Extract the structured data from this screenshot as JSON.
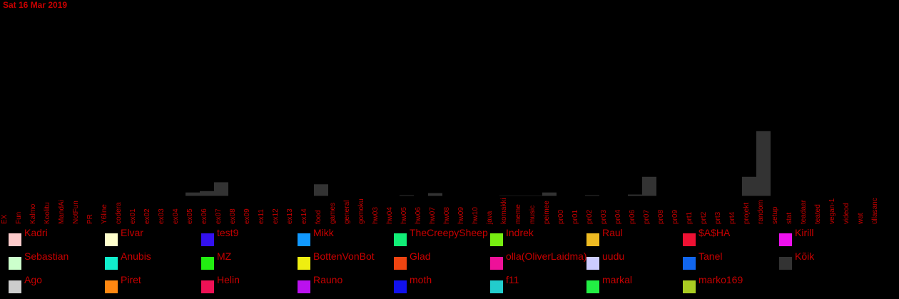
{
  "title": "Sat 16 Mar 2019",
  "colors": {
    "text": "#c80000",
    "background": "#000000",
    "bar": "#333333"
  },
  "chart_data": {
    "type": "bar",
    "categories": [
      "EX",
      "Fun",
      "Kalmo",
      "Koolitu",
      "MandAi",
      "NotFun",
      "PR",
      "Y6line",
      "codera",
      "ex01",
      "ex02",
      "ex03",
      "ex04",
      "ex05",
      "ex06",
      "ex07",
      "ex08",
      "ex09",
      "ex11",
      "ex12",
      "ex13",
      "ex14",
      "food",
      "games",
      "general",
      "gomoku",
      "hw03",
      "hw04",
      "hw05",
      "hw06",
      "hw07",
      "hw08",
      "hw09",
      "hw10",
      "java",
      "komakki",
      "meme",
      "music",
      "peimee",
      "pr00",
      "pr01",
      "pr02",
      "pr03",
      "pr04",
      "pr06",
      "pr07",
      "pr08",
      "pr09",
      "prt1",
      "prt2",
      "prt3",
      "prt4",
      "projekt",
      "random",
      "setup",
      "stat",
      "teadaar",
      "teated",
      "vegan-1",
      "videod",
      "wat",
      "üllasanc"
    ],
    "values": [
      0,
      0,
      0,
      0,
      0,
      0,
      0,
      0,
      0,
      0,
      0,
      0,
      0,
      5,
      7,
      20,
      0,
      0,
      0,
      0,
      0,
      0,
      17,
      0,
      0,
      0,
      0,
      0,
      1,
      0,
      4,
      0,
      0,
      0,
      0,
      0.5,
      0.5,
      0.5,
      5,
      0,
      0,
      1,
      0,
      0,
      2,
      28,
      0,
      0,
      0,
      0,
      0,
      0,
      28,
      95,
      0,
      0,
      0,
      0,
      0,
      0,
      0,
      0
    ],
    "ylim": [
      0,
      100
    ],
    "grid": false,
    "legend_position": "bottom",
    "legend": [
      {
        "name": "Kadri",
        "color": "#ffcccc"
      },
      {
        "name": "Elvar",
        "color": "#ffffcc"
      },
      {
        "name": "test9",
        "color": "#3311ee"
      },
      {
        "name": "Mikk",
        "color": "#1199ff"
      },
      {
        "name": "TheCreepySheep",
        "color": "#11ee77"
      },
      {
        "name": "Indrek",
        "color": "#77ee11"
      },
      {
        "name": "Raul",
        "color": "#eebb22"
      },
      {
        "name": "$A$HA",
        "color": "#ee1133"
      },
      {
        "name": "Kirill",
        "color": "#ee11ee"
      },
      {
        "name": "Sebastian",
        "color": "#ccffcc"
      },
      {
        "name": "Anubis",
        "color": "#11eecc"
      },
      {
        "name": "MZ",
        "color": "#22ee11"
      },
      {
        "name": "BottenVonBot",
        "color": "#eeee11"
      },
      {
        "name": "Glad",
        "color": "#ee4411"
      },
      {
        "name": "olla(OliverLaidma)",
        "color": "#ee1199"
      },
      {
        "name": "uudu",
        "color": "#ccccff"
      },
      {
        "name": "Tanel",
        "color": "#1166ee"
      },
      {
        "name": "Kõik",
        "color": "#333333"
      },
      {
        "name": "Ago",
        "color": "#cccccc"
      },
      {
        "name": "Piret",
        "color": "#ff8811"
      },
      {
        "name": "Helin",
        "color": "#ee1155"
      },
      {
        "name": "Rauno",
        "color": "#bb11ee"
      },
      {
        "name": "moth",
        "color": "#1111ee"
      },
      {
        "name": "f11",
        "color": "#22cccc"
      },
      {
        "name": "markal",
        "color": "#22ee44"
      },
      {
        "name": "marko169",
        "color": "#aacc22"
      }
    ]
  }
}
